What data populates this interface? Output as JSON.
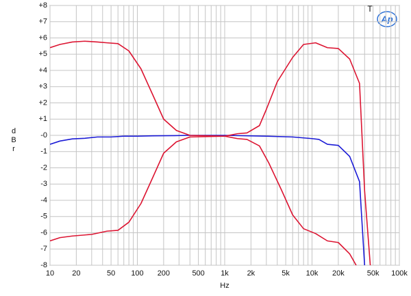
{
  "chart_data": {
    "type": "line",
    "corner_mark": "T",
    "logo": "Ap",
    "xlabel": "Hz",
    "ylabel": "dBr",
    "xscale": "log",
    "grid": true,
    "xlim": [
      10,
      100000
    ],
    "ylim": [
      -8,
      8
    ],
    "xticks": [
      10,
      20,
      50,
      100,
      200,
      500,
      {
        "value": 1000,
        "label": "1k"
      },
      {
        "value": 2000,
        "label": "2k"
      },
      {
        "value": 5000,
        "label": "5k"
      },
      {
        "value": 10000,
        "label": "10k"
      },
      {
        "value": 20000,
        "label": "20k"
      },
      {
        "value": 50000,
        "label": "50k"
      },
      {
        "value": 100000,
        "label": "100k"
      }
    ],
    "x_minor_ticks": [
      30,
      40,
      60,
      70,
      80,
      90,
      300,
      400,
      600,
      700,
      800,
      900,
      3000,
      4000,
      6000,
      7000,
      8000,
      9000,
      30000,
      40000,
      60000,
      70000,
      80000,
      90000
    ],
    "yticks": [
      {
        "value": 8,
        "label": "+8"
      },
      {
        "value": 7,
        "label": "+7"
      },
      {
        "value": 6,
        "label": "+6"
      },
      {
        "value": 5,
        "label": "+5"
      },
      {
        "value": 4,
        "label": "+4"
      },
      {
        "value": 3,
        "label": "+3"
      },
      {
        "value": 2,
        "label": "+2"
      },
      {
        "value": 1,
        "label": "+1"
      },
      {
        "value": 0,
        "label": "-0"
      },
      -1,
      -2,
      -3,
      -4,
      -5,
      -6,
      -7,
      -8
    ],
    "series": [
      {
        "color": "#1a1ad6",
        "x": [
          10,
          13,
          18,
          25,
          35,
          50,
          70,
          100,
          150,
          250,
          400,
          1000,
          3000,
          6000,
          10000,
          12000,
          15000,
          20000,
          27000,
          35000,
          40000,
          45000
        ],
        "values": [
          -0.55,
          -0.35,
          -0.22,
          -0.18,
          -0.1,
          -0.1,
          -0.05,
          -0.05,
          -0.03,
          -0.02,
          0,
          0,
          -0.05,
          -0.1,
          -0.2,
          -0.25,
          -0.55,
          -0.62,
          -1.3,
          -2.85,
          -8,
          -9
        ]
      },
      {
        "color": "#dc1431",
        "x": [
          10,
          13,
          18,
          25,
          35,
          45,
          60,
          80,
          110,
          150,
          200,
          280,
          400,
          1000,
          1400,
          1800,
          2500,
          3000,
          4000,
          6000,
          8000,
          11000,
          15000,
          20000,
          27000,
          35000,
          40000,
          48000
        ],
        "values": [
          5.4,
          5.6,
          5.75,
          5.8,
          5.75,
          5.7,
          5.65,
          5.2,
          4.1,
          2.5,
          1,
          0.3,
          0,
          -0.05,
          0.1,
          0.15,
          0.6,
          1.6,
          3.3,
          4.8,
          5.6,
          5.7,
          5.4,
          5.35,
          4.7,
          3.2,
          -3.4,
          -9
        ]
      },
      {
        "color": "#dc1431",
        "x": [
          10,
          13,
          18,
          30,
          45,
          60,
          80,
          110,
          150,
          200,
          280,
          400,
          1000,
          1400,
          1800,
          2500,
          3200,
          4500,
          6000,
          8000,
          11000,
          15000,
          20000,
          27000,
          32000,
          36000
        ],
        "values": [
          -6.5,
          -6.3,
          -6.2,
          -6.1,
          -5.9,
          -5.85,
          -5.35,
          -4.2,
          -2.6,
          -1.1,
          -0.4,
          -0.1,
          -0.05,
          -0.2,
          -0.25,
          -0.65,
          -1.7,
          -3.4,
          -4.9,
          -5.75,
          -6.05,
          -6.5,
          -6.6,
          -7.3,
          -8,
          -9
        ]
      }
    ]
  }
}
